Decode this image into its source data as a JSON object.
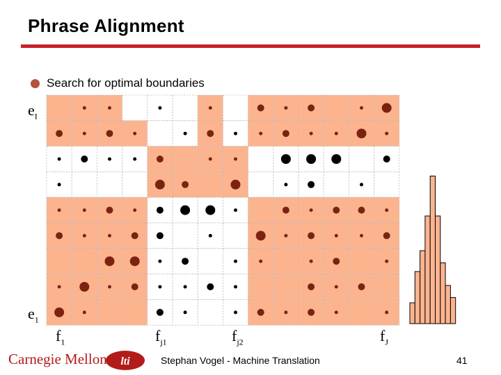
{
  "slide": {
    "title": "Phrase Alignment",
    "bullet": "Search for optimal boundaries",
    "footer": "Stephan Vogel - Machine Translation",
    "page_number": "41",
    "logo_text": "Carnegie Mellon",
    "logo_badge": "lti"
  },
  "axis_labels": {
    "e_top": {
      "base": "e",
      "sub": "I"
    },
    "e_bottom": {
      "base": "e",
      "sub": "1"
    },
    "f_1": {
      "base": "f",
      "sub": "1"
    },
    "f_j1": {
      "base": "f",
      "sub": "j1"
    },
    "f_j2": {
      "base": "f",
      "sub": "j2"
    },
    "f_J": {
      "base": "f",
      "sub": "J"
    }
  },
  "colors": {
    "highlight": "#fcb48f",
    "dark_dot": "#000000",
    "red_dot": "#7a2410",
    "title_rule": "#c8202a",
    "bullet": "#b5503a",
    "histogram": "#fcb48f"
  },
  "matrix": {
    "cols": 14,
    "rows": 9,
    "highlight_rows": [
      0,
      1,
      2,
      3,
      4,
      5,
      6,
      7,
      8
    ],
    "note": "",
    "cells": [
      [
        [
          0,
          "r"
        ],
        [
          1,
          "s"
        ],
        [
          1,
          "s"
        ],
        [
          0,
          "n"
        ],
        [
          1,
          "s"
        ],
        [
          0,
          "w"
        ],
        [
          1,
          "s"
        ],
        [
          0,
          "w"
        ],
        [
          2,
          "m"
        ],
        [
          1,
          "s"
        ],
        [
          2,
          "m"
        ],
        [
          0,
          "n"
        ],
        [
          1,
          "s"
        ],
        [
          3,
          "l"
        ]
      ],
      [
        [
          2,
          "m"
        ],
        [
          1,
          "s"
        ],
        [
          2,
          "m"
        ],
        [
          1,
          "s"
        ],
        [
          0,
          "w"
        ],
        [
          1,
          "s"
        ],
        [
          2,
          "m"
        ],
        [
          1,
          "s"
        ],
        [
          1,
          "s"
        ],
        [
          2,
          "m"
        ],
        [
          1,
          "s"
        ],
        [
          1,
          "s"
        ],
        [
          3,
          "l"
        ],
        [
          1,
          "s"
        ]
      ],
      [
        [
          1,
          "s"
        ],
        [
          2,
          "m"
        ],
        [
          1,
          "s"
        ],
        [
          1,
          "s"
        ],
        [
          2,
          "m"
        ],
        [
          0,
          "w"
        ],
        [
          1,
          "s"
        ],
        [
          1,
          "s"
        ],
        [
          0,
          "w"
        ],
        [
          3,
          "l"
        ],
        [
          3,
          "l"
        ],
        [
          3,
          "l"
        ],
        [
          0,
          "n"
        ],
        [
          2,
          "m"
        ]
      ],
      [
        [
          1,
          "s"
        ],
        [
          0,
          "w"
        ],
        [
          0,
          "w"
        ],
        [
          0,
          "w"
        ],
        [
          3,
          "l"
        ],
        [
          2,
          "m"
        ],
        [
          0,
          "w"
        ],
        [
          3,
          "l"
        ],
        [
          0,
          "w"
        ],
        [
          1,
          "s"
        ],
        [
          2,
          "m"
        ],
        [
          0,
          "n"
        ],
        [
          1,
          "s"
        ],
        [
          0,
          "n"
        ]
      ],
      [
        [
          1,
          "s"
        ],
        [
          1,
          "s"
        ],
        [
          2,
          "m"
        ],
        [
          1,
          "s"
        ],
        [
          2,
          "m"
        ],
        [
          3,
          "l"
        ],
        [
          3,
          "l"
        ],
        [
          1,
          "s"
        ],
        [
          0,
          "n"
        ],
        [
          2,
          "m"
        ],
        [
          1,
          "s"
        ],
        [
          2,
          "m"
        ],
        [
          2,
          "m"
        ],
        [
          1,
          "s"
        ]
      ],
      [
        [
          2,
          "m"
        ],
        [
          1,
          "s"
        ],
        [
          1,
          "s"
        ],
        [
          2,
          "m"
        ],
        [
          2,
          "m"
        ],
        [
          0,
          "w"
        ],
        [
          1,
          "s"
        ],
        [
          0,
          "w"
        ],
        [
          3,
          "l"
        ],
        [
          1,
          "s"
        ],
        [
          2,
          "m"
        ],
        [
          1,
          "s"
        ],
        [
          1,
          "s"
        ],
        [
          2,
          "m"
        ]
      ],
      [
        [
          0,
          "n"
        ],
        [
          0,
          "n"
        ],
        [
          3,
          "l"
        ],
        [
          3,
          "l"
        ],
        [
          1,
          "s"
        ],
        [
          2,
          "m"
        ],
        [
          0,
          "w"
        ],
        [
          1,
          "s"
        ],
        [
          1,
          "s"
        ],
        [
          0,
          "n"
        ],
        [
          1,
          "s"
        ],
        [
          2,
          "m"
        ],
        [
          0,
          "n"
        ],
        [
          1,
          "s"
        ]
      ],
      [
        [
          1,
          "s"
        ],
        [
          3,
          "l"
        ],
        [
          1,
          "s"
        ],
        [
          2,
          "m"
        ],
        [
          1,
          "s"
        ],
        [
          1,
          "s"
        ],
        [
          2,
          "m"
        ],
        [
          1,
          "s"
        ],
        [
          0,
          "n"
        ],
        [
          0,
          "n"
        ],
        [
          2,
          "m"
        ],
        [
          1,
          "s"
        ],
        [
          2,
          "m"
        ],
        [
          0,
          "n"
        ]
      ],
      [
        [
          3,
          "l"
        ],
        [
          1,
          "s"
        ],
        [
          0,
          "n"
        ],
        [
          0,
          "n"
        ],
        [
          2,
          "m"
        ],
        [
          1,
          "s"
        ],
        [
          0,
          "w"
        ],
        [
          1,
          "s"
        ],
        [
          2,
          "m"
        ],
        [
          1,
          "s"
        ],
        [
          2,
          "m"
        ],
        [
          1,
          "s"
        ],
        [
          0,
          "n"
        ],
        [
          1,
          "s"
        ]
      ]
    ]
  },
  "highlight_map": [
    [
      1,
      1,
      1,
      0,
      0,
      0,
      1,
      0,
      1,
      1,
      1,
      1,
      1,
      1
    ],
    [
      1,
      1,
      1,
      1,
      0,
      0,
      1,
      0,
      1,
      1,
      1,
      1,
      1,
      1
    ],
    [
      0,
      0,
      0,
      0,
      1,
      1,
      1,
      1,
      0,
      0,
      0,
      0,
      0,
      0
    ],
    [
      0,
      0,
      0,
      0,
      1,
      1,
      1,
      1,
      0,
      0,
      0,
      0,
      0,
      0
    ],
    [
      1,
      1,
      1,
      1,
      0,
      0,
      0,
      0,
      1,
      1,
      1,
      1,
      1,
      1
    ],
    [
      1,
      1,
      1,
      1,
      0,
      0,
      0,
      0,
      1,
      1,
      1,
      1,
      1,
      1
    ],
    [
      1,
      1,
      1,
      1,
      0,
      0,
      0,
      0,
      1,
      1,
      1,
      1,
      1,
      1
    ],
    [
      1,
      1,
      1,
      1,
      0,
      0,
      0,
      0,
      1,
      1,
      1,
      1,
      1,
      1
    ],
    [
      1,
      1,
      1,
      1,
      0,
      0,
      0,
      0,
      1,
      1,
      1,
      1,
      1,
      1
    ]
  ],
  "histogram_levels": [
    0.12,
    0.3,
    0.42,
    0.62,
    0.85,
    0.62,
    0.35,
    0.22,
    0.15
  ]
}
